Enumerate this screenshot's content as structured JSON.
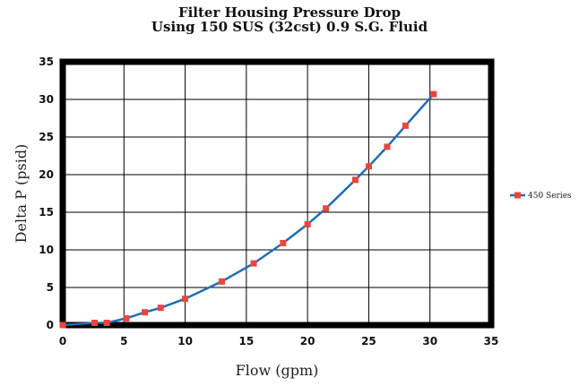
{
  "title_line1": "Filter Housing Pressure Drop",
  "title_line2": "Using 150 SUS (32cst) 0.9 S.G. Fluid",
  "chart_data": {
    "type": "line",
    "title": "Filter Housing Pressure Drop Using 150 SUS (32cst) 0.9 S.G. Fluid",
    "xlabel": "Flow (gpm)",
    "ylabel": "Delta P (psid)",
    "xlim": [
      0,
      35
    ],
    "ylim": [
      0,
      35
    ],
    "xticks": [
      0,
      5,
      10,
      15,
      20,
      25,
      30,
      35
    ],
    "yticks": [
      0,
      5,
      10,
      15,
      20,
      25,
      30,
      35
    ],
    "grid": true,
    "legend_position": "right",
    "series": [
      {
        "name": "450 Series",
        "line_color": "#1f6db3",
        "marker_color": "#e8473c",
        "points": [
          [
            0,
            0
          ],
          [
            2.6,
            0.3
          ],
          [
            3.6,
            0.3
          ],
          [
            5.2,
            0.9
          ],
          [
            6.7,
            1.7
          ],
          [
            8,
            2.3
          ],
          [
            10,
            3.5
          ],
          [
            13,
            5.8
          ],
          [
            15.6,
            8.2
          ],
          [
            18,
            10.9
          ],
          [
            20,
            13.4
          ],
          [
            21.5,
            15.5
          ],
          [
            23.9,
            19.3
          ],
          [
            25,
            21.1
          ],
          [
            26.5,
            23.7
          ],
          [
            28,
            26.5
          ],
          [
            30.3,
            30.7
          ]
        ]
      }
    ]
  }
}
